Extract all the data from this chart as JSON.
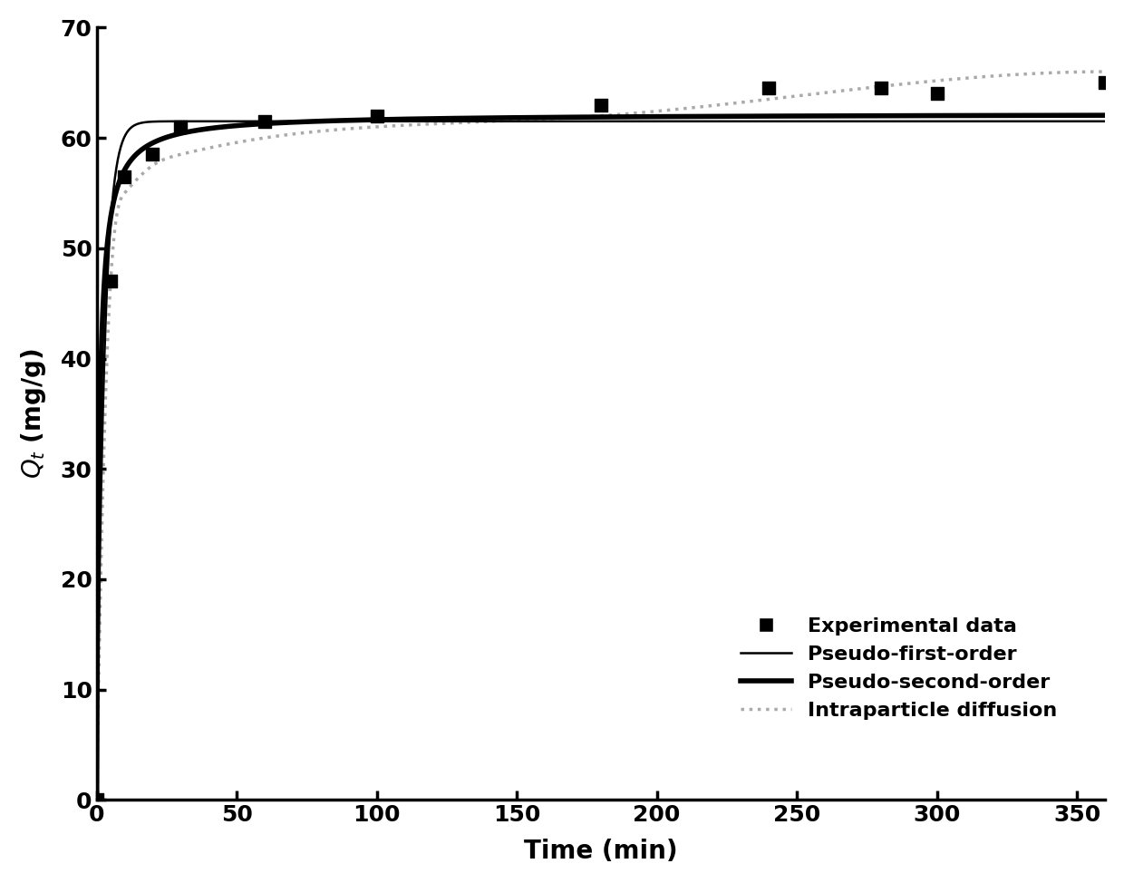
{
  "experimental_t": [
    0,
    5,
    10,
    20,
    30,
    60,
    100,
    180,
    240,
    280,
    300,
    360
  ],
  "experimental_q": [
    0,
    47.0,
    56.5,
    58.5,
    61.0,
    61.5,
    62.0,
    63.0,
    64.5,
    64.5,
    64.0,
    65.0
  ],
  "pfo_qe": 61.5,
  "pfo_k1": 0.38,
  "pso_qe": 62.2,
  "pso_k2": 0.018,
  "ipd_ki": 2.2,
  "ipd_C": 42.0,
  "xlim": [
    0,
    360
  ],
  "ylim": [
    0,
    70
  ],
  "xticks": [
    0,
    50,
    100,
    150,
    200,
    250,
    300,
    350
  ],
  "yticks": [
    0,
    10,
    20,
    30,
    40,
    50,
    60,
    70
  ],
  "xlabel": "Time (min)",
  "ylabel": "$Q_t$ (mg/g)",
  "legend_labels": [
    "Experimental data",
    "Pseudo-first-order",
    "Pseudo-second-order",
    "Intraparticle diffusion"
  ],
  "line_color_pfo": "#000000",
  "line_color_pso": "#000000",
  "line_color_ipd": "#aaaaaa",
  "marker_color": "#000000",
  "background_color": "#ffffff",
  "label_fontsize": 20,
  "tick_fontsize": 18,
  "legend_fontsize": 16,
  "pfo_linewidth": 1.8,
  "pso_linewidth": 4.0,
  "ipd_linewidth": 1.8
}
